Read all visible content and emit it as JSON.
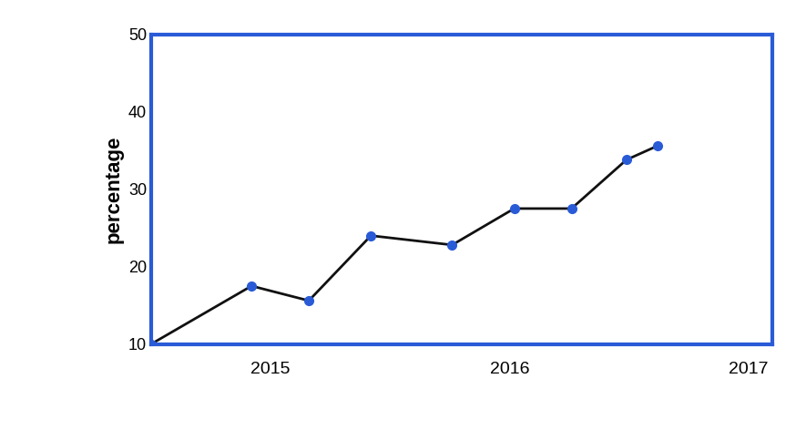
{
  "chart_data": {
    "type": "line",
    "y_label": "percentage",
    "x": [
      2014.5,
      2014.92,
      2015.16,
      2015.42,
      2015.76,
      2016.02,
      2016.26,
      2016.49,
      2016.62
    ],
    "values": [
      10,
      17.5,
      15.6,
      24,
      22.8,
      27.5,
      27.5,
      33.8,
      35.6
    ],
    "color": "#111111",
    "marker": "o",
    "line_style": "solid",
    "xlim": [
      2014.5,
      2017.1
    ],
    "xticks": [
      2015,
      2016,
      2017
    ],
    "ylim": [
      10,
      50
    ],
    "yticks": [
      10,
      20,
      30,
      40,
      50
    ],
    "grid": false
  }
}
